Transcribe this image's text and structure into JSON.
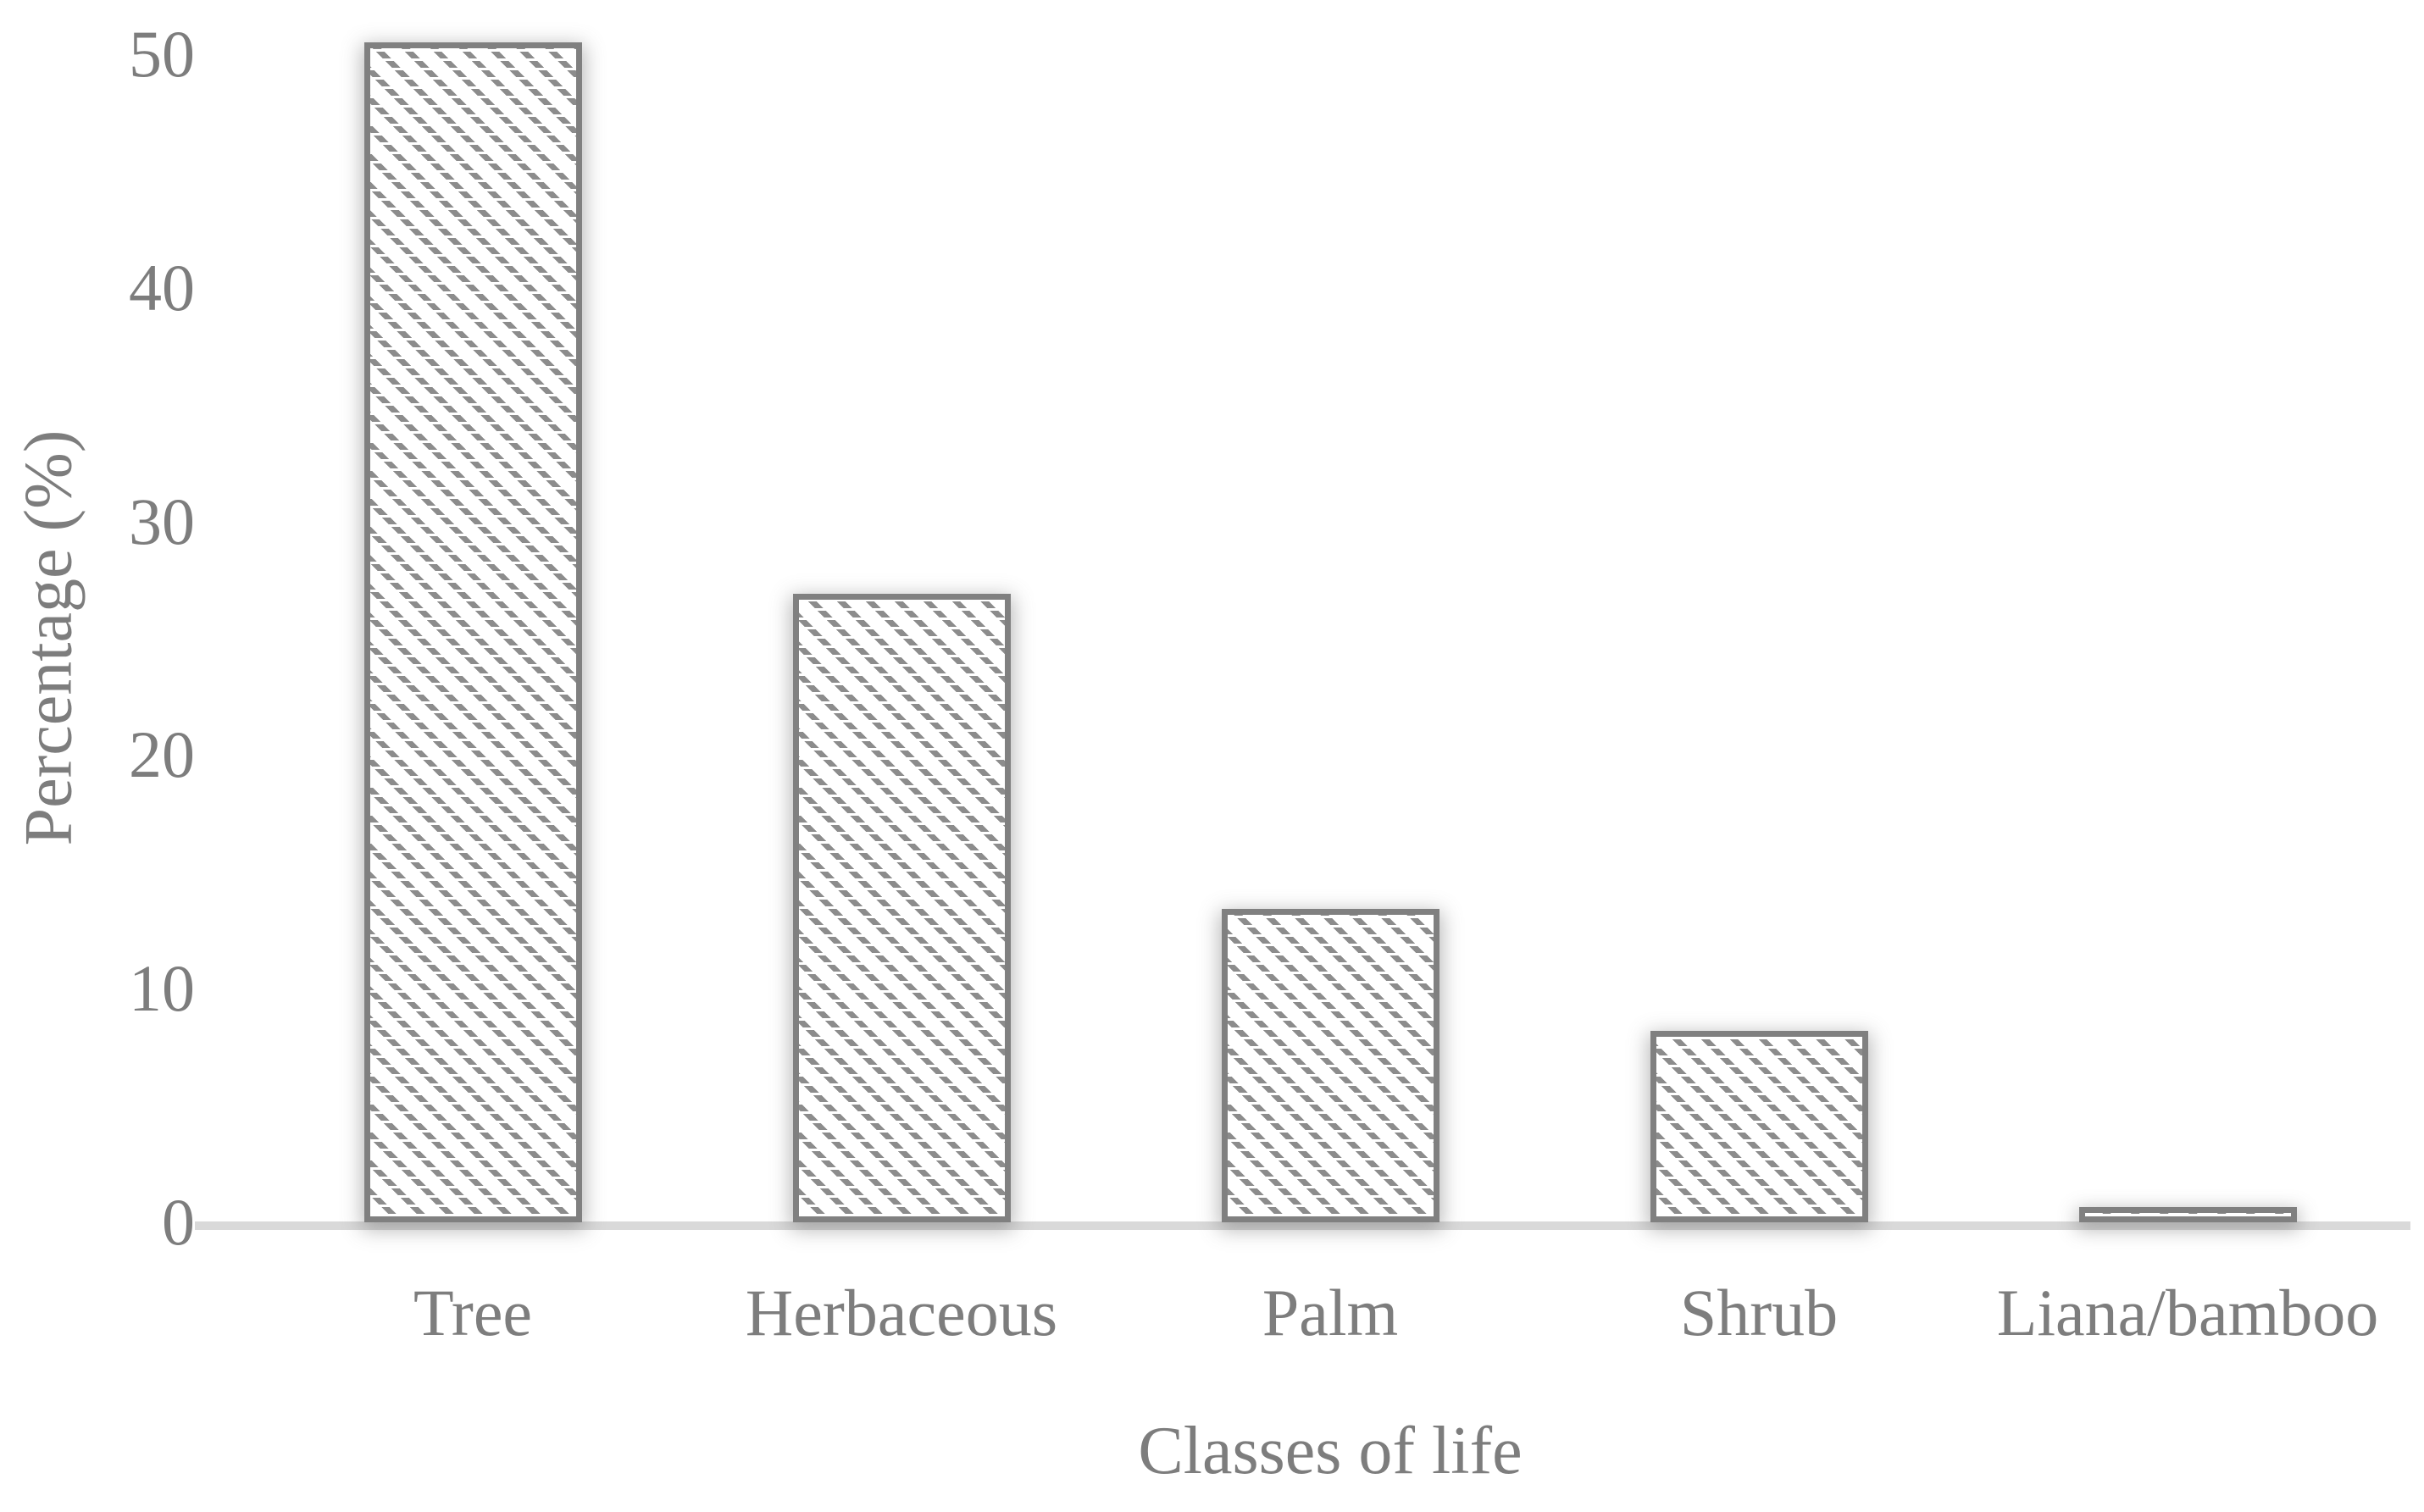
{
  "chart_data": {
    "type": "bar",
    "title": "",
    "categories": [
      "Tree",
      "Herbaceous",
      "Palm",
      "Shrub",
      "Liana/bamboo"
    ],
    "values": [
      50.5,
      26.9,
      13.4,
      8.2,
      0.65
    ],
    "xlabel": "Classes of life",
    "ylabel": "Percentage (%)",
    "ylim": [
      0,
      52
    ],
    "yticks": [
      0,
      10,
      20,
      30,
      40,
      50
    ],
    "grid": false,
    "legend": false,
    "style": {
      "text_color": "#7d7d7d",
      "bar_fill": "#ffffff",
      "bar_border_color": "#808080",
      "hatch_color": "#8c8c8c",
      "hatch_pattern": "dashed-diagonal-45deg",
      "axis_line_color": "#d9d9d9"
    }
  }
}
